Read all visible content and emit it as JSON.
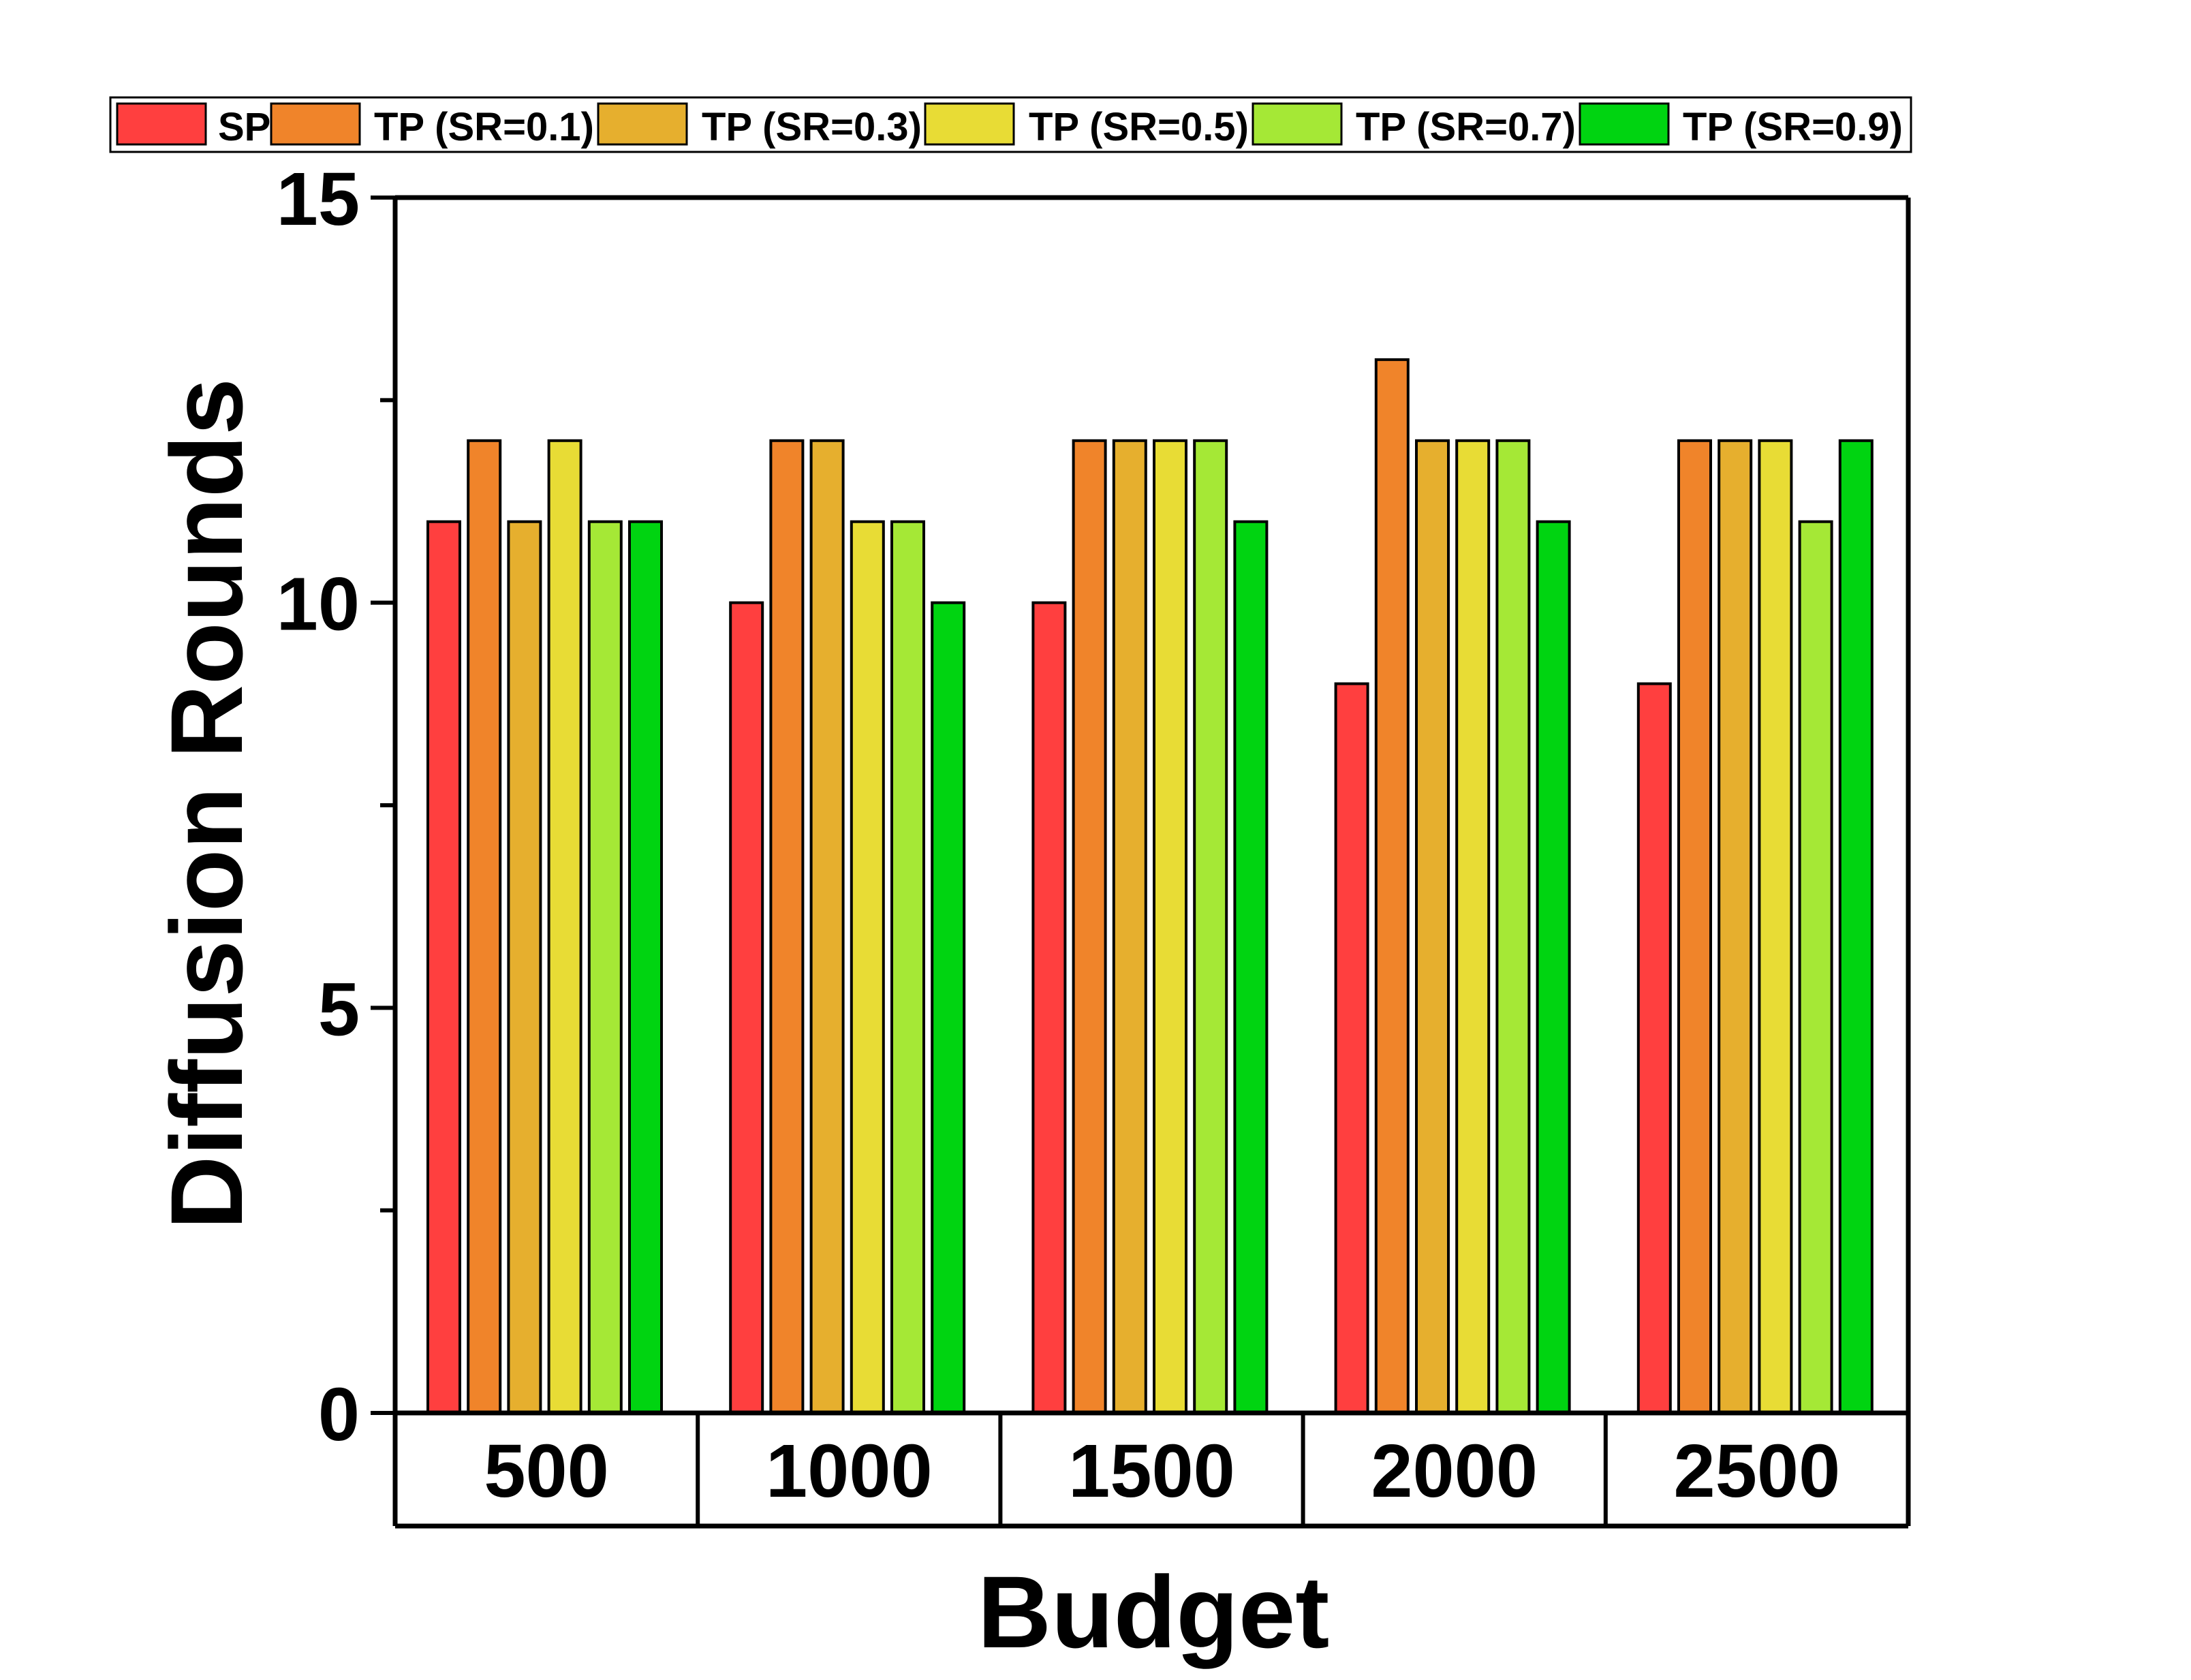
{
  "chart_data": {
    "type": "bar",
    "title": "",
    "xlabel": "Budget",
    "ylabel": "Diffusion Rounds",
    "ylim": [
      0,
      15
    ],
    "yticks": [
      0,
      5,
      10,
      15
    ],
    "categories": [
      "500",
      "1000",
      "1500",
      "2000",
      "2500"
    ],
    "legend_position": "top",
    "grid": false,
    "series": [
      {
        "name": "SP",
        "color": "#FF3F3F",
        "values": [
          11,
          10,
          10,
          9,
          9
        ]
      },
      {
        "name": "TP (SR=0.1)",
        "color": "#F0842A",
        "values": [
          12,
          12,
          12,
          13,
          12
        ]
      },
      {
        "name": "TP (SR=0.3)",
        "color": "#E6AF2E",
        "values": [
          11,
          12,
          12,
          12,
          12
        ]
      },
      {
        "name": "TP (SR=0.5)",
        "color": "#E8DC35",
        "values": [
          12,
          11,
          12,
          12,
          12
        ]
      },
      {
        "name": "TP (SR=0.7)",
        "color": "#A5E836",
        "values": [
          11,
          11,
          12,
          12,
          11
        ]
      },
      {
        "name": "TP (SR=0.9)",
        "color": "#00D411",
        "values": [
          11,
          10,
          11,
          11,
          12
        ]
      }
    ]
  }
}
